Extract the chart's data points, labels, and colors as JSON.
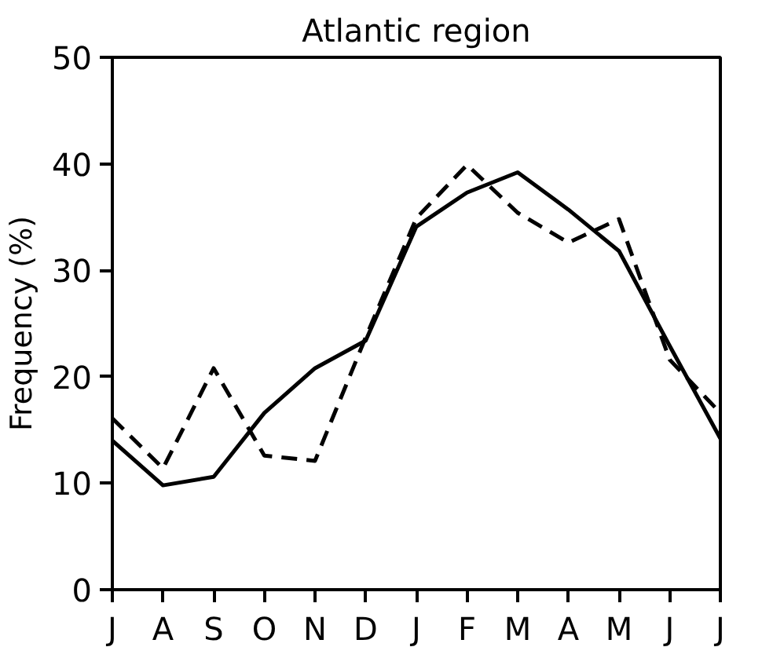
{
  "chart_data": {
    "type": "line",
    "title": "Atlantic region",
    "ylabel": "Frequency (%)",
    "categories": [
      "J",
      "A",
      "S",
      "O",
      "N",
      "D",
      "J",
      "F",
      "M",
      "A",
      "M",
      "J",
      "J"
    ],
    "ylim": [
      0,
      50
    ],
    "yticks": [
      0,
      10,
      20,
      30,
      40,
      50
    ],
    "grid": false,
    "marker": "none",
    "series": [
      {
        "color": "#000000",
        "line_style": "solid",
        "values": [
          14.0,
          9.8,
          10.6,
          16.6,
          20.8,
          23.4,
          34.1,
          37.3,
          39.2,
          35.7,
          31.8,
          22.9,
          14.2
        ]
      },
      {
        "color": "#000000",
        "line_style": "dashed",
        "values": [
          16.1,
          11.4,
          20.8,
          12.6,
          12.1,
          23.7,
          34.9,
          39.9,
          35.4,
          32.6,
          34.8,
          21.6,
          16.6
        ]
      }
    ]
  }
}
